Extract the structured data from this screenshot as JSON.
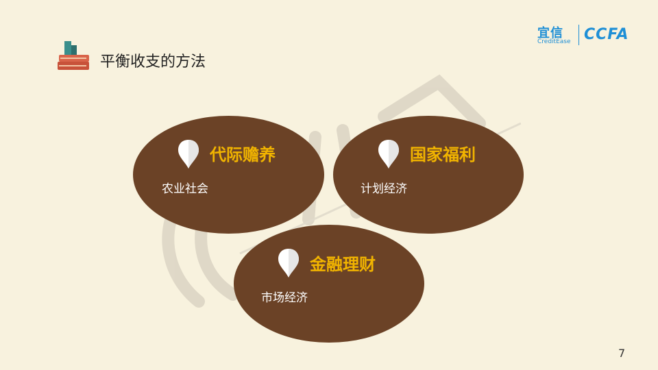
{
  "slide": {
    "title": "平衡收支的方法",
    "page_number": "7"
  },
  "logo": {
    "brand_cn": "宜信",
    "brand_en": "CreditEase",
    "partner": "CCFA"
  },
  "cards": [
    {
      "title": "代际赡养",
      "text": "农业社会"
    },
    {
      "title": "国家福利",
      "text": "计划经济"
    },
    {
      "title": "金融理财",
      "text": "市场经济"
    }
  ],
  "colors": {
    "background": "#f8f2de",
    "ellipse": "#6b4226",
    "accent": "#f1b400",
    "logo": "#1e8fd6"
  }
}
